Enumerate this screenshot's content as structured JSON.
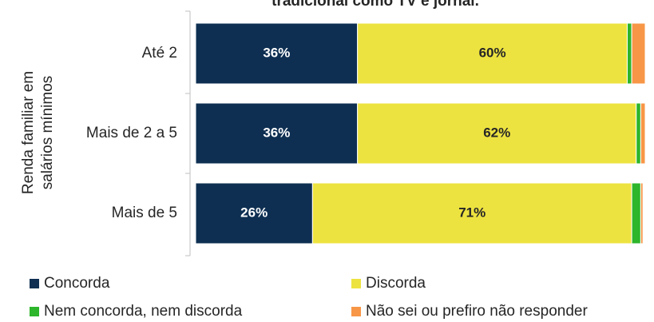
{
  "chart_data": {
    "type": "stacked_barh",
    "title": "tradicional como TV e jornal.",
    "ylabel": [
      "Renda familiar em",
      "salários mínimos"
    ],
    "categories": [
      "Até 2",
      "Mais de 2 a 5",
      "Mais de 5"
    ],
    "xlim": [
      0,
      100
    ],
    "series": [
      {
        "name": "Concorda",
        "color": "#0e2f52",
        "values": [
          36,
          36,
          26
        ],
        "value_labels": [
          "36%",
          "36%",
          "26%"
        ]
      },
      {
        "name": "Discorda",
        "color": "#ede340",
        "values": [
          60,
          62,
          71
        ],
        "value_labels": [
          "60%",
          "62%",
          "71%"
        ]
      },
      {
        "name": "Nem concorda, nem discorda",
        "color": "#2db52b",
        "values": [
          1,
          1,
          2
        ]
      },
      {
        "name": "Não sei ou prefiro não responder",
        "color": "#f79646",
        "values": [
          3,
          1,
          0.5
        ]
      }
    ]
  }
}
